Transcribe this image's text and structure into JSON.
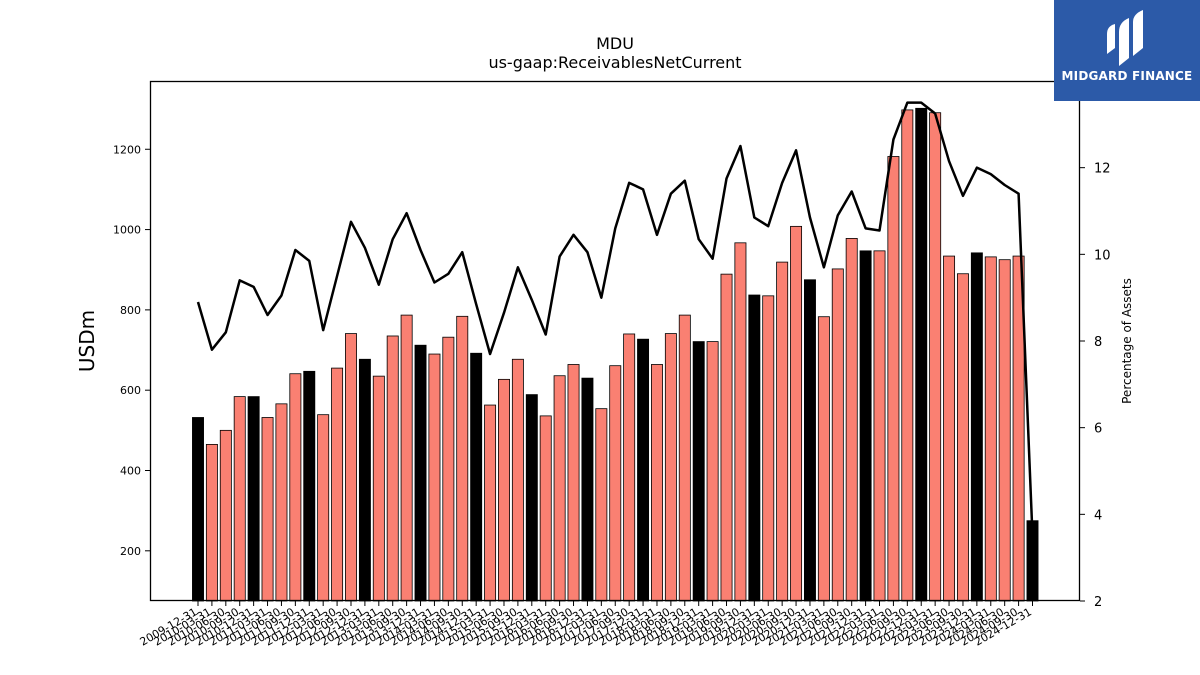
{
  "chart_data": {
    "type": "bar",
    "title": "MDU",
    "subtitle": "us-gaap:ReceivablesNetCurrent",
    "ylabel": "USDm",
    "y2label": "Percentage of Assets",
    "ylim": [
      75,
      1370
    ],
    "y2lim": [
      2,
      14
    ],
    "yticks": [
      200,
      400,
      600,
      800,
      1000,
      1200
    ],
    "y2ticks": [
      2,
      4,
      6,
      8,
      10,
      12
    ],
    "grid": false,
    "colors": {
      "annual": "#000000",
      "quarterly": "#fa8072",
      "line": "#000000"
    },
    "categories": [
      "2009-12-31",
      "2010-03-31",
      "2010-06-30",
      "2010-09-30",
      "2010-12-31",
      "2011-03-31",
      "2011-06-30",
      "2011-09-30",
      "2011-12-31",
      "2012-03-31",
      "2012-06-30",
      "2012-09-30",
      "2012-12-31",
      "2013-03-31",
      "2013-06-30",
      "2013-09-30",
      "2013-12-31",
      "2014-03-31",
      "2014-06-30",
      "2014-09-30",
      "2014-12-31",
      "2015-03-31",
      "2015-06-30",
      "2015-09-30",
      "2015-12-31",
      "2016-03-31",
      "2016-06-30",
      "2016-09-30",
      "2016-12-31",
      "2017-03-31",
      "2017-06-30",
      "2017-09-30",
      "2017-12-31",
      "2018-03-31",
      "2018-06-30",
      "2018-09-30",
      "2018-12-31",
      "2019-03-31",
      "2019-06-30",
      "2019-09-30",
      "2019-12-31",
      "2020-03-31",
      "2020-06-30",
      "2020-09-30",
      "2020-12-31",
      "2021-03-31",
      "2021-06-30",
      "2021-09-30",
      "2021-12-31",
      "2022-03-31",
      "2022-06-30",
      "2022-09-30",
      "2022-12-31",
      "2023-03-31",
      "2023-06-30",
      "2023-09-30",
      "2023-12-31",
      "2024-03-31",
      "2024-06-30",
      "2024-09-30",
      "2024-12-31"
    ],
    "xtick_labels": [
      "2009-12-31",
      "2010-03-31",
      "2010-06-30",
      "2010-09-30",
      "2010-12-31",
      "2011-03-31",
      "2011-06-30",
      "2011-09-30",
      "2011-12-31",
      "2012-03-31",
      "2012-06-30",
      "2012-09-30",
      "2012-12-31",
      "2013-03-31",
      "2013-06-30",
      "2013-09-30",
      "2013-12-31",
      "2014-03-31",
      "2014-06-30",
      "2014-09-30",
      "2014-12-31",
      "2015-03-31",
      "2015-06-30",
      "2015-09-30",
      "2015-12-31",
      "2016-03-31",
      "2016-06-30",
      "2016-09-30",
      "2016-12-31",
      "2017-03-31",
      "2017-06-30",
      "2017-09-30",
      "2017-12-31",
      "2018-03-31",
      "2018-06-30",
      "2018-09-30",
      "2018-12-31",
      "2019-03-31",
      "2019-06-30",
      "2019-09-30",
      "2019-12-31",
      "2020-03-31",
      "2020-06-30",
      "2020-09-30",
      "2020-12-31",
      "2021-03-31",
      "2021-06-30",
      "2021-09-30",
      "2021-12-31",
      "2022-03-31",
      "2022-06-30",
      "2022-09-30",
      "2022-12-31",
      "2023-03-31",
      "2023-06-30",
      "2023-09-30",
      "2023-12-31",
      "2024-03-31",
      "2024-06-30",
      "2024-09-30",
      "2024-12-31"
    ],
    "bar_kind": [
      "annual",
      "quarterly",
      "quarterly",
      "quarterly",
      "annual",
      "quarterly",
      "quarterly",
      "quarterly",
      "annual",
      "quarterly",
      "quarterly",
      "quarterly",
      "annual",
      "quarterly",
      "quarterly",
      "quarterly",
      "annual",
      "quarterly",
      "quarterly",
      "quarterly",
      "annual",
      "quarterly",
      "quarterly",
      "quarterly",
      "annual",
      "quarterly",
      "quarterly",
      "quarterly",
      "annual",
      "quarterly",
      "quarterly",
      "quarterly",
      "annual",
      "quarterly",
      "quarterly",
      "quarterly",
      "annual",
      "quarterly",
      "quarterly",
      "quarterly",
      "annual",
      "quarterly",
      "quarterly",
      "quarterly",
      "annual",
      "quarterly",
      "quarterly",
      "quarterly",
      "annual",
      "quarterly",
      "quarterly",
      "quarterly",
      "annual",
      "quarterly",
      "quarterly",
      "quarterly",
      "annual",
      "quarterly",
      "quarterly",
      "quarterly",
      "annual"
    ],
    "values": [
      532,
      465,
      500,
      584,
      584,
      532,
      566,
      641,
      647,
      539,
      655,
      741,
      677,
      635,
      735,
      787,
      712,
      690,
      732,
      784,
      692,
      563,
      627,
      677,
      589,
      536,
      636,
      664,
      630,
      554,
      661,
      740,
      727,
      664,
      741,
      787,
      721,
      721,
      889,
      967,
      837,
      835,
      919,
      1008,
      875,
      783,
      902,
      978,
      947,
      947,
      1182,
      1298,
      1302,
      1291,
      934,
      890,
      942,
      932,
      925,
      934,
      275
    ],
    "pct_assets": [
      8.9,
      7.8,
      8.2,
      9.4,
      9.25,
      8.6,
      9.05,
      10.1,
      9.85,
      8.25,
      9.5,
      10.75,
      10.15,
      9.3,
      10.35,
      10.95,
      10.1,
      9.35,
      9.55,
      10.05,
      8.85,
      7.7,
      8.65,
      9.7,
      8.95,
      8.15,
      9.95,
      10.45,
      10.05,
      9.0,
      10.6,
      11.65,
      11.5,
      10.45,
      11.4,
      11.7,
      10.35,
      9.9,
      11.75,
      12.5,
      10.85,
      10.65,
      11.65,
      12.4,
      10.85,
      9.7,
      10.9,
      11.45,
      10.6,
      10.55,
      12.65,
      13.5,
      13.5,
      13.25,
      12.15,
      11.35,
      12.0,
      11.85,
      11.6,
      11.4,
      3.5
    ]
  },
  "logo": {
    "text": "MIDGARD FINANCE",
    "icon": "midgard-logo-icon",
    "background": "#2c5aa8"
  }
}
